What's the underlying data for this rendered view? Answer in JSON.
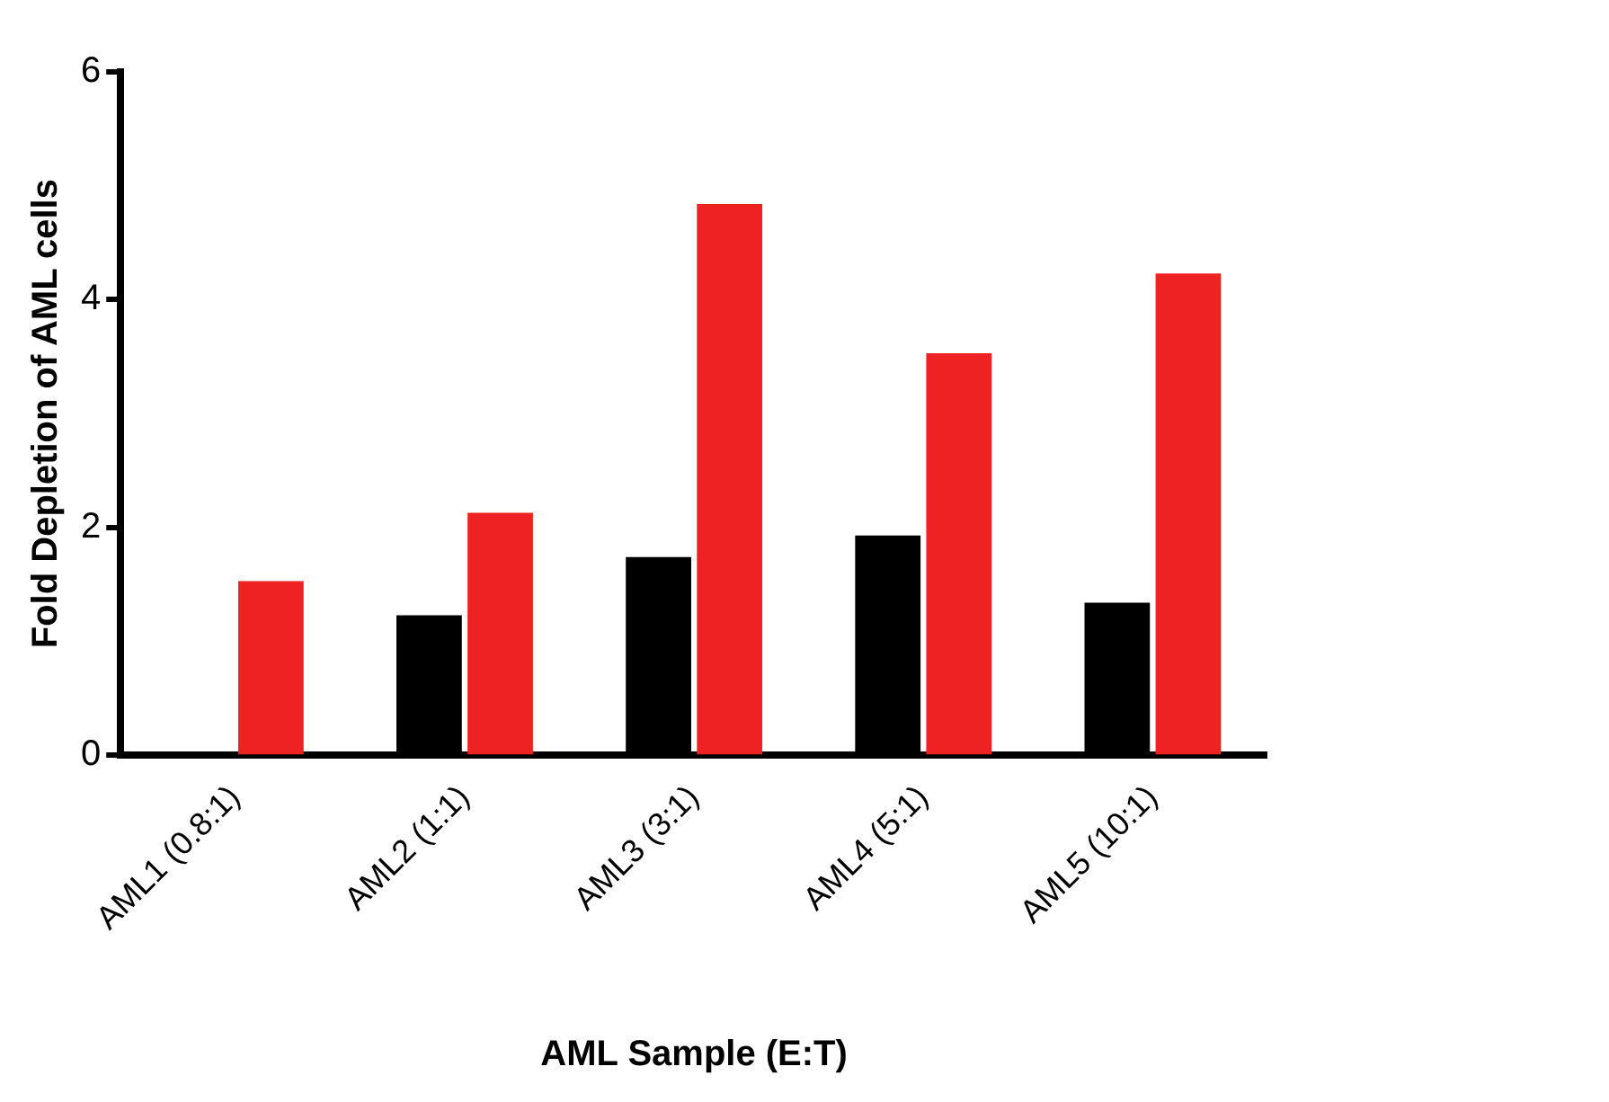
{
  "chart_data": {
    "type": "bar",
    "xlabel": "AML Sample (E:T)",
    "ylabel": "Fold Depletion of AML cells",
    "categories": [
      "AML1 (0.8:1)",
      "AML2 (1:1)",
      "AML3 (3:1)",
      "AML4 (5:1)",
      "AML5 (10:1)"
    ],
    "series": [
      {
        "color": "#000000",
        "values": [
          null,
          1.23,
          1.74,
          1.93,
          1.34
        ]
      },
      {
        "color": "#ee2222",
        "values": [
          1.53,
          2.13,
          4.84,
          3.53,
          4.23
        ]
      }
    ],
    "ylim": [
      0,
      6
    ],
    "yticks": [
      0,
      2,
      4,
      6
    ],
    "grid": false,
    "legend": false
  }
}
